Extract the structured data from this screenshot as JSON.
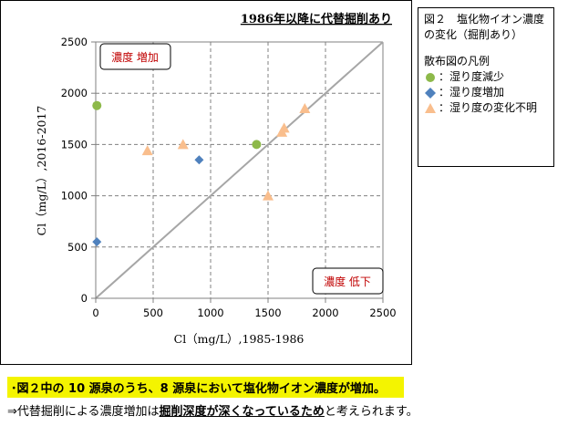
{
  "chart_data": {
    "type": "scatter",
    "title": "1986年以降に代替掘削あり",
    "xlabel": "Cl（mg/L）,1985-1986",
    "ylabel": "Cl（mg/L）,2016-2017",
    "xlim": [
      0,
      2500
    ],
    "ylim": [
      0,
      2500
    ],
    "x_ticks": [
      "0",
      "500",
      "1000",
      "1500",
      "2000",
      "2500"
    ],
    "y_ticks": [
      "0",
      "500",
      "1000",
      "1500",
      "2000",
      "2500"
    ],
    "grid": true,
    "reference_line": "y = x",
    "corner_labels": {
      "upper_left": "濃度 増加",
      "lower_right": "濃度 低下"
    },
    "series": [
      {
        "name": "：湿り度減少",
        "marker": "circle",
        "color": "#8DB94A",
        "points": [
          [
            10,
            1880
          ],
          [
            1400,
            1500
          ]
        ]
      },
      {
        "name": "：湿り度増加",
        "marker": "diamond",
        "color": "#4F81BD",
        "points": [
          [
            10,
            550
          ],
          [
            900,
            1350
          ]
        ]
      },
      {
        "name": "：湿り度の変化不明",
        "marker": "triangle",
        "color": "#F9BE8D",
        "points": [
          [
            450,
            1440
          ],
          [
            760,
            1500
          ],
          [
            1500,
            1000
          ],
          [
            1620,
            1620
          ],
          [
            1640,
            1660
          ],
          [
            1820,
            1850
          ]
        ]
      }
    ]
  },
  "legend": {
    "caption": "図２　塩化物イオン濃度の変化（掘削あり）",
    "heading": "散布図の凡例",
    "items": [
      {
        "marker": "circle",
        "label": "：湿り度減少"
      },
      {
        "marker": "diamond",
        "label": "：湿り度増加"
      },
      {
        "marker": "triangle",
        "label": "：湿り度の変化不明"
      }
    ]
  },
  "notes": {
    "highlight": "･図２中の 10 源泉のうち、8 源泉において塩化物イオン濃度が増加。",
    "line2_prefix": "⇒代替掘削による濃度増加は",
    "line2_bold": "掘削深度が深くなっているため",
    "line2_suffix": "と考えられます。"
  },
  "colors": {
    "grid": "#808080",
    "diagonal": "#A6A6A6",
    "corner_label_text": "#C00000"
  }
}
